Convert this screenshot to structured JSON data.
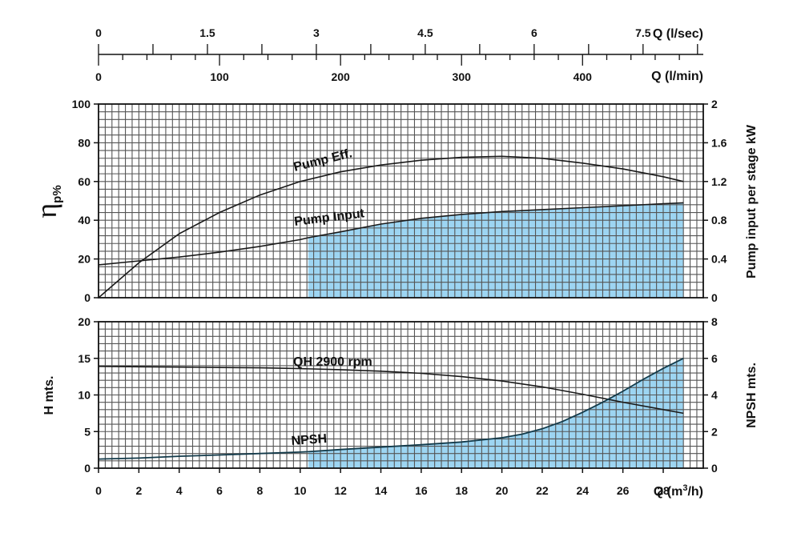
{
  "chart_data": [
    {
      "type": "line",
      "panel": "efficiency-power",
      "title": "",
      "x_unit": "Q (m³/h)",
      "ylabel": "η p%",
      "ylabel_symbol": "η",
      "ylabel_sub": "p%",
      "ylabel_right": "Pump input per stage kW",
      "xlim": [
        0,
        30
      ],
      "ylim": [
        0,
        100
      ],
      "ylim_right": [
        0,
        2
      ],
      "yticks": [
        "0",
        "20",
        "40",
        "60",
        "80",
        "100"
      ],
      "yticks_right": [
        "0",
        "0.4",
        "0.8",
        "1.2",
        "1.6",
        "2"
      ],
      "grid": true,
      "series": [
        {
          "name": "Pump Eff.",
          "axis": "left",
          "x": [
            0,
            2,
            4,
            6,
            8,
            10,
            12,
            14,
            16,
            18,
            20,
            22,
            24,
            26,
            28,
            29
          ],
          "y": [
            0,
            18,
            33,
            44,
            53,
            60,
            65,
            68.5,
            71,
            72.5,
            73,
            72,
            69.5,
            66.5,
            62.5,
            60
          ]
        },
        {
          "name": "Pump Input",
          "axis": "right",
          "x": [
            0,
            2,
            4,
            6,
            8,
            10,
            10.4,
            12,
            14,
            16,
            18,
            20,
            22,
            24,
            26,
            28,
            29
          ],
          "y": [
            0.34,
            0.38,
            0.42,
            0.47,
            0.53,
            0.6,
            0.62,
            0.68,
            0.76,
            0.82,
            0.86,
            0.89,
            0.91,
            0.93,
            0.95,
            0.97,
            0.98
          ]
        }
      ],
      "shaded_range_x": [
        10.4,
        29
      ]
    },
    {
      "type": "line",
      "panel": "head-npsh",
      "title": "",
      "xlabel": "Q (m³/h)",
      "xlabel_base": "Q (m",
      "xlabel_sup": "3",
      "xlabel_tail": "/h)",
      "ylabel": "H mts.",
      "ylabel_right": "NPSH mts.",
      "xlim": [
        0,
        30
      ],
      "ylim": [
        0,
        20
      ],
      "ylim_right": [
        0,
        8
      ],
      "xticks": [
        "0",
        "2",
        "4",
        "6",
        "8",
        "10",
        "12",
        "14",
        "16",
        "18",
        "20",
        "22",
        "24",
        "26",
        "28"
      ],
      "yticks": [
        "0",
        "5",
        "10",
        "15",
        "20"
      ],
      "yticks_right": [
        "0",
        "2",
        "4",
        "6",
        "8"
      ],
      "grid": true,
      "series": [
        {
          "name": "QH 2900 rpm",
          "axis": "left",
          "x": [
            0,
            2,
            4,
            6,
            8,
            10,
            12,
            14,
            16,
            18,
            20,
            22,
            24,
            26,
            28,
            29
          ],
          "y": [
            13.9,
            13.85,
            13.8,
            13.75,
            13.7,
            13.6,
            13.45,
            13.25,
            12.95,
            12.5,
            11.9,
            11.1,
            10.1,
            9.0,
            8.0,
            7.5
          ]
        },
        {
          "name": "NPSH",
          "axis": "right",
          "x": [
            0,
            2,
            4,
            6,
            8,
            10,
            10.4,
            12,
            14,
            16,
            18,
            20,
            21,
            22,
            23,
            24,
            25,
            26,
            27,
            28,
            29
          ],
          "y": [
            0.5,
            0.55,
            0.65,
            0.72,
            0.8,
            0.88,
            0.9,
            1.02,
            1.15,
            1.28,
            1.43,
            1.66,
            1.86,
            2.15,
            2.55,
            3.05,
            3.6,
            4.2,
            4.85,
            5.45,
            6.0
          ]
        }
      ],
      "shaded_range_x": [
        10.4,
        29
      ]
    },
    {
      "type": "axis",
      "panel": "top-scales",
      "scales": [
        {
          "label": "Q (l/sec)",
          "ticks": [
            "0",
            "1.5",
            "3",
            "4.5",
            "6",
            "7.5"
          ],
          "values": [
            0,
            1.5,
            3,
            4.5,
            6,
            7.5
          ]
        },
        {
          "label": "Q (l/min)",
          "ticks": [
            "0",
            "100",
            "200",
            "300",
            "400"
          ],
          "values": [
            0,
            100,
            200,
            300,
            400
          ]
        }
      ]
    }
  ],
  "colors": {
    "grid": "#555555",
    "curve": "#1a1a1a",
    "shade": "#9dd5f2",
    "npsh_curve": "#123a4a"
  }
}
